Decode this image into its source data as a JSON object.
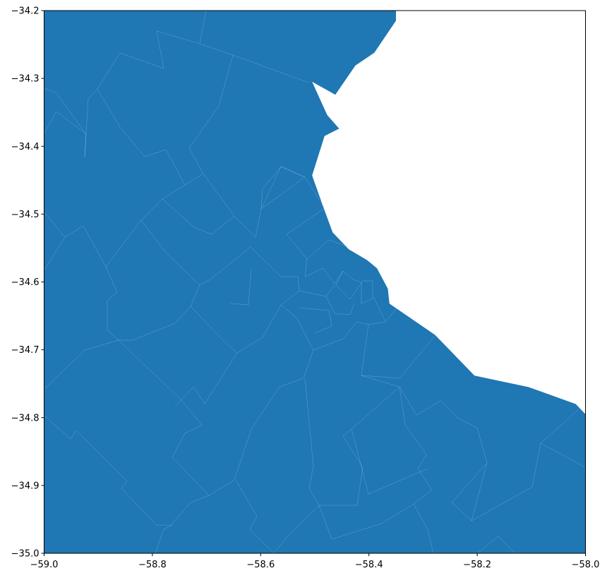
{
  "map": {
    "fill_color": "#1f77b4",
    "boundary_color": "#ffffff",
    "background_color": "#ffffff",
    "coastline": [
      [
        -58.35,
        -34.2
      ],
      [
        -58.35,
        -34.215
      ],
      [
        -58.39,
        -34.262
      ],
      [
        -58.425,
        -34.281
      ],
      [
        -58.462,
        -34.324
      ],
      [
        -58.505,
        -34.305
      ],
      [
        -58.477,
        -34.354
      ],
      [
        -58.455,
        -34.374
      ],
      [
        -58.482,
        -34.385
      ],
      [
        -58.505,
        -34.443
      ],
      [
        -58.485,
        -34.488
      ],
      [
        -58.467,
        -34.527
      ],
      [
        -58.437,
        -34.552
      ],
      [
        -58.403,
        -34.568
      ],
      [
        -58.385,
        -34.58
      ],
      [
        -58.365,
        -34.61
      ],
      [
        -58.362,
        -34.632
      ],
      [
        -58.278,
        -34.678
      ],
      [
        -58.205,
        -34.738
      ],
      [
        -58.105,
        -34.755
      ],
      [
        -58.018,
        -34.78
      ],
      [
        -58.0,
        -34.795
      ]
    ]
  },
  "axes": {
    "xlim": [
      -59.0,
      -58.0
    ],
    "ylim": [
      -35.0,
      -34.2
    ],
    "x_ticks": [
      {
        "value": -59.0,
        "label": "−59.0"
      },
      {
        "value": -58.8,
        "label": "−58.8"
      },
      {
        "value": -58.6,
        "label": "−58.6"
      },
      {
        "value": -58.4,
        "label": "−58.4"
      },
      {
        "value": -58.2,
        "label": "−58.2"
      },
      {
        "value": -58.0,
        "label": "−58.0"
      }
    ],
    "y_ticks": [
      {
        "value": -34.2,
        "label": "−34.2"
      },
      {
        "value": -34.3,
        "label": "−34.3"
      },
      {
        "value": -34.4,
        "label": "−34.4"
      },
      {
        "value": -34.5,
        "label": "−34.5"
      },
      {
        "value": -34.6,
        "label": "−34.6"
      },
      {
        "value": -34.7,
        "label": "−34.7"
      },
      {
        "value": -34.8,
        "label": "−34.8"
      },
      {
        "value": -34.9,
        "label": "−34.9"
      },
      {
        "value": -35.0,
        "label": "−35.0"
      }
    ]
  },
  "chart_data": {
    "type": "map",
    "title": "",
    "xlabel": "",
    "ylabel": "",
    "xlim": [
      -59.0,
      -58.0
    ],
    "ylim": [
      -35.0,
      -34.2
    ],
    "grid": false,
    "legend": "none"
  }
}
